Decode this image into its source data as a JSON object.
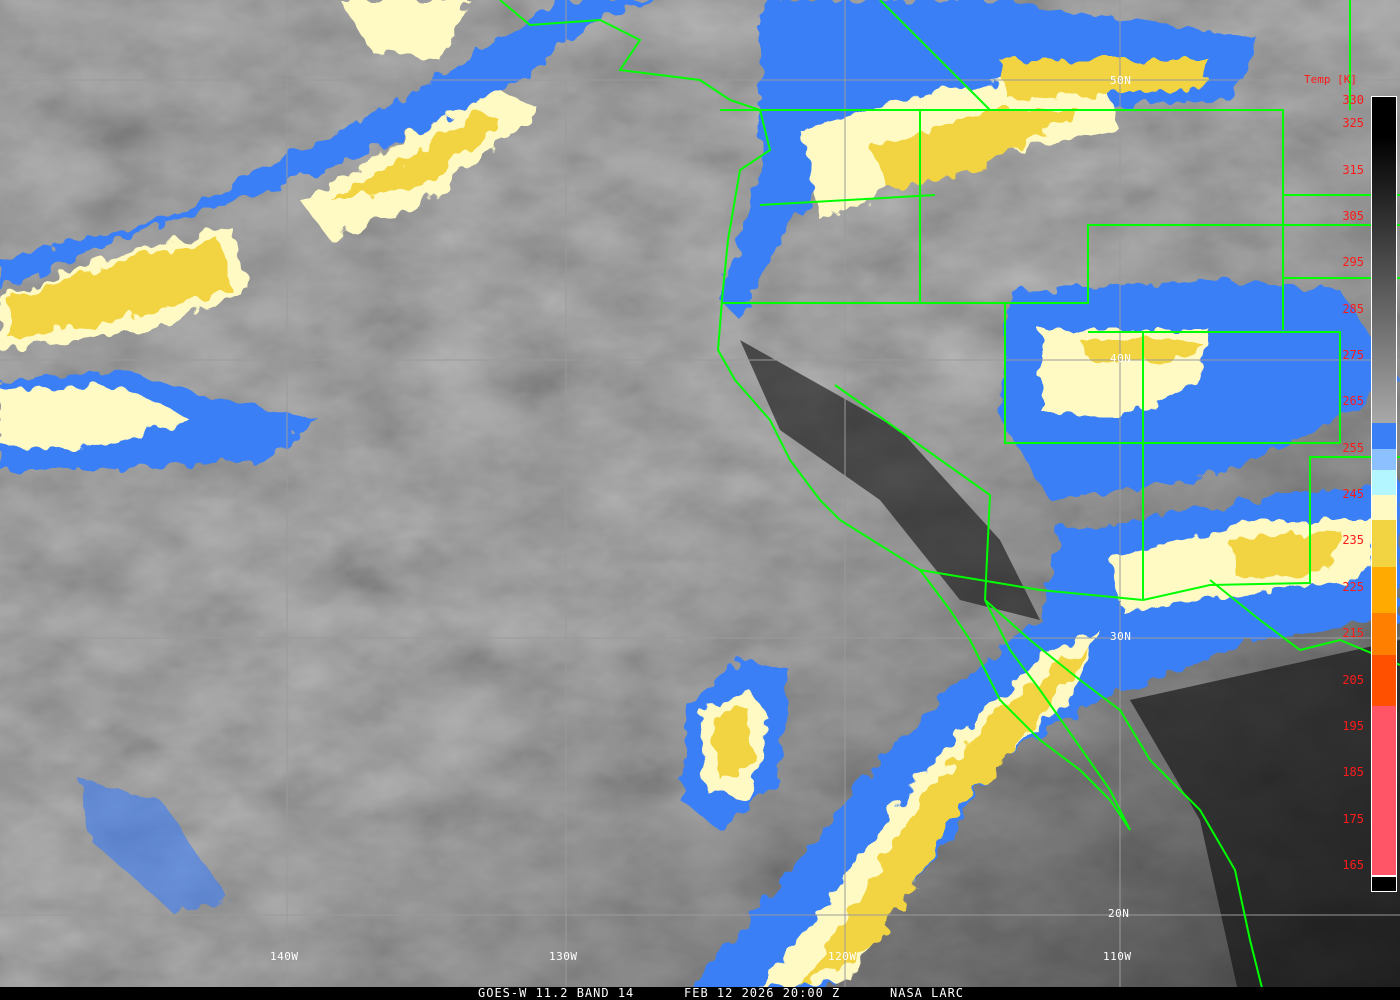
{
  "caption": {
    "satellite": "GOES-W 11.2 BAND 14",
    "datetime": "FEB 12 2026 20:00 Z",
    "credit": "NASA LARC"
  },
  "grid": {
    "longitudes": [
      "140W",
      "130W",
      "120W",
      "110W"
    ],
    "latitudes": [
      "50N",
      "40N",
      "30N",
      "20N"
    ]
  },
  "map_colors": {
    "borders": "#00ff00",
    "grid": "#9a9a9a",
    "labels": "#ffffff"
  },
  "colorbar": {
    "title": "Temp [K]",
    "ticks": [
      "330",
      "325",
      "315",
      "305",
      "295",
      "285",
      "275",
      "265",
      "255",
      "245",
      "235",
      "225",
      "215",
      "205",
      "195",
      "185",
      "175",
      "165"
    ],
    "range_k": [
      162,
      330
    ],
    "gray_ramp": {
      "from_k": 330,
      "to_k": 260.5,
      "from_color": "#000000",
      "to_color": "#a8a8a8"
    },
    "bands": [
      {
        "from_k": 260.5,
        "to_k": 255,
        "color": "#3a7ff6"
      },
      {
        "from_k": 255,
        "to_k": 250.4,
        "color": "#8cc0ff"
      },
      {
        "from_k": 250.4,
        "to_k": 245,
        "color": "#b4f6ff"
      },
      {
        "from_k": 245,
        "to_k": 239.6,
        "color": "#fffac4"
      },
      {
        "from_k": 239.6,
        "to_k": 229.5,
        "color": "#f2d442"
      },
      {
        "from_k": 229.5,
        "to_k": 219.6,
        "color": "#ffaa00"
      },
      {
        "from_k": 219.6,
        "to_k": 210.5,
        "color": "#ff7f00"
      },
      {
        "from_k": 210.5,
        "to_k": 199.5,
        "color": "#ff5000"
      },
      {
        "from_k": 199.5,
        "to_k": 163,
        "color": "#ff5566"
      }
    ]
  }
}
